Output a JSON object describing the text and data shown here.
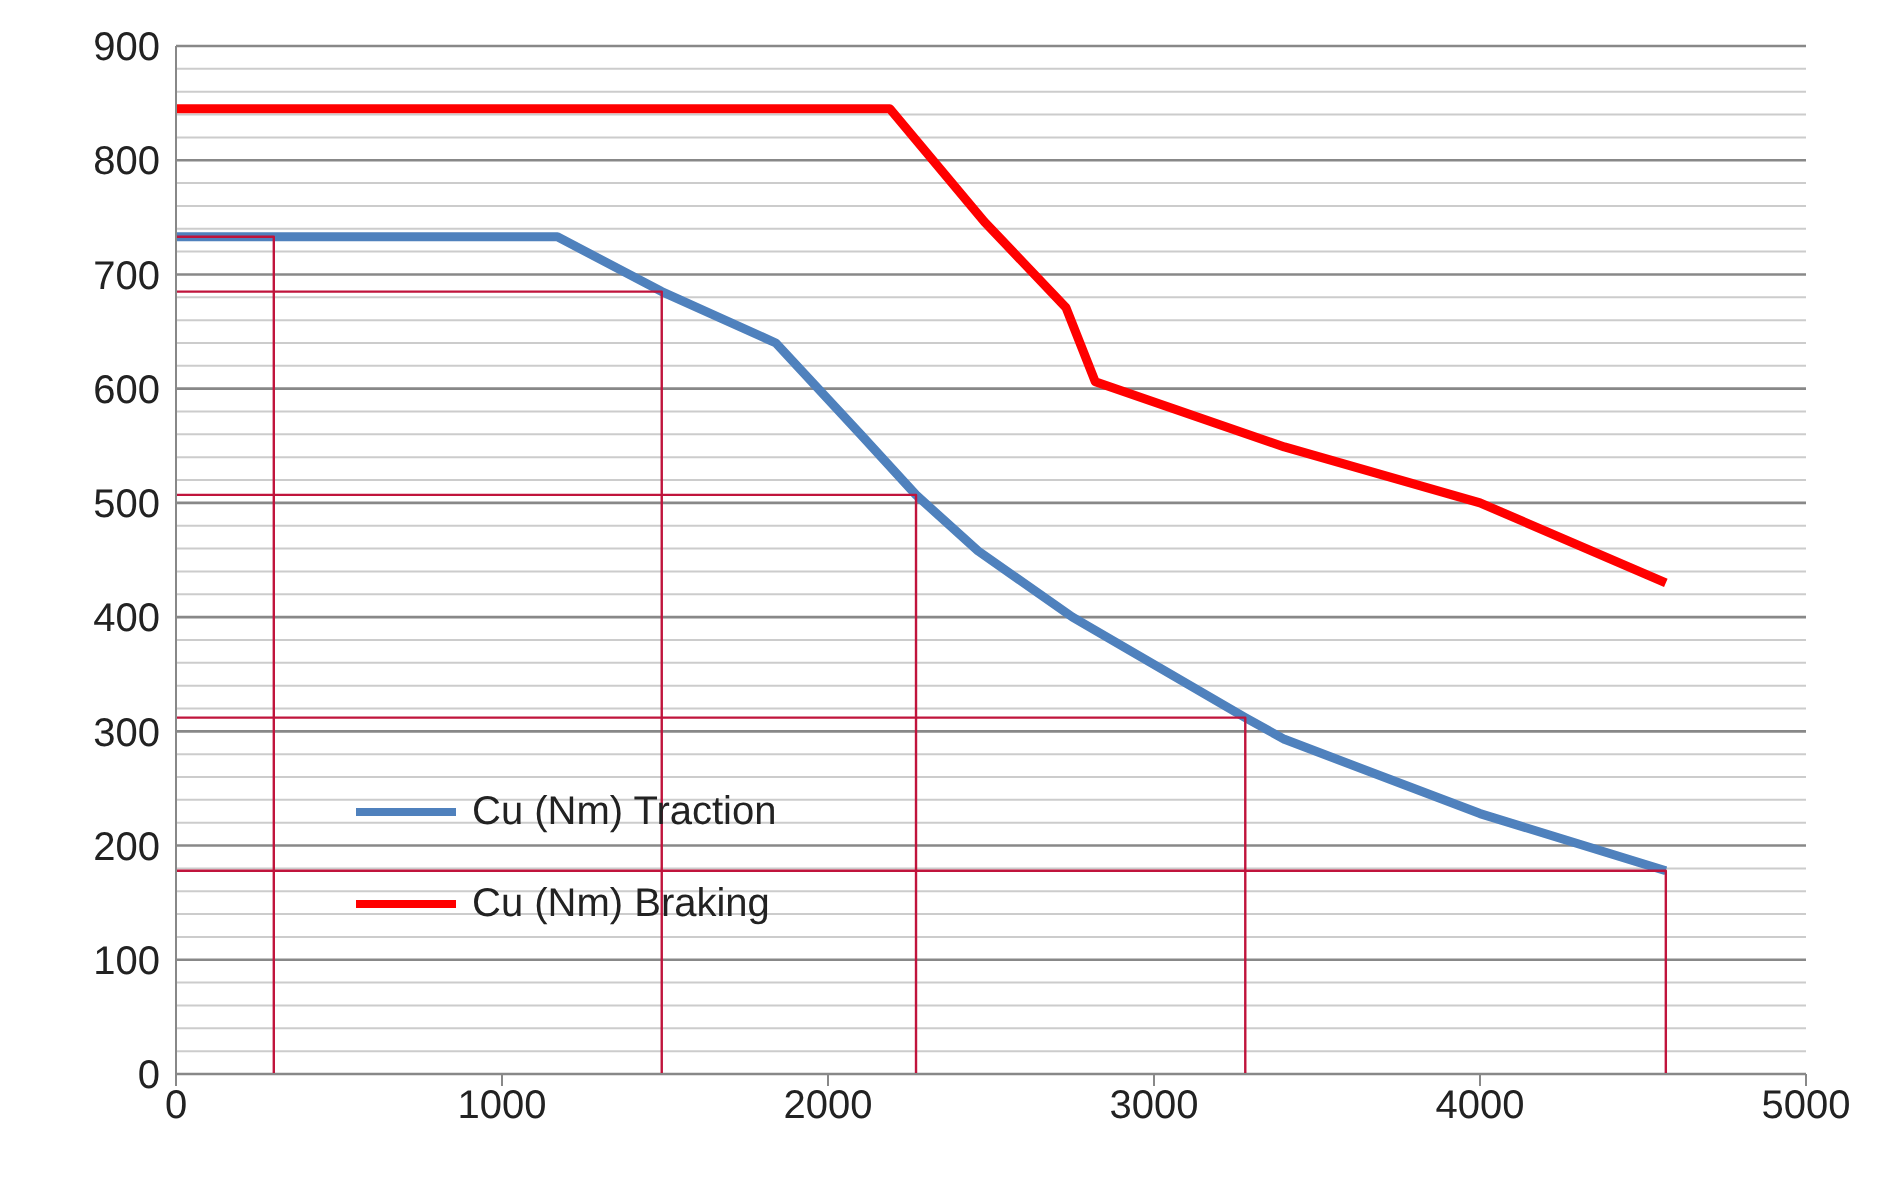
{
  "chart_data": {
    "type": "line",
    "xlim": [
      0,
      5000
    ],
    "xticks": [
      0,
      1000,
      2000,
      3000,
      4000,
      5000
    ],
    "ylim": [
      0,
      900
    ],
    "yticks": [
      0,
      {
        "value": 20,
        "label": null
      },
      {
        "value": 40,
        "label": null
      },
      {
        "value": 60,
        "label": null
      },
      {
        "value": 80,
        "label": null
      },
      100,
      {
        "value": 120,
        "label": null
      },
      {
        "value": 140,
        "label": null
      },
      {
        "value": 160,
        "label": null
      },
      {
        "value": 180,
        "label": null
      },
      200,
      {
        "value": 220,
        "label": null
      },
      {
        "value": 240,
        "label": null
      },
      {
        "value": 260,
        "label": null
      },
      {
        "value": 280,
        "label": null
      },
      300,
      {
        "value": 320,
        "label": null
      },
      {
        "value": 340,
        "label": null
      },
      {
        "value": 360,
        "label": null
      },
      {
        "value": 380,
        "label": null
      },
      400,
      {
        "value": 420,
        "label": null
      },
      {
        "value": 440,
        "label": null
      },
      {
        "value": 460,
        "label": null
      },
      {
        "value": 480,
        "label": null
      },
      500,
      {
        "value": 520,
        "label": null
      },
      {
        "value": 540,
        "label": null
      },
      {
        "value": 560,
        "label": null
      },
      {
        "value": 580,
        "label": null
      },
      600,
      {
        "value": 620,
        "label": null
      },
      {
        "value": 640,
        "label": null
      },
      {
        "value": 660,
        "label": null
      },
      {
        "value": 680,
        "label": null
      },
      700,
      {
        "value": 720,
        "label": null
      },
      {
        "value": 740,
        "label": null
      },
      {
        "value": 760,
        "label": null
      },
      {
        "value": 780,
        "label": null
      },
      800,
      {
        "value": 820,
        "label": null
      },
      {
        "value": 840,
        "label": null
      },
      {
        "value": 860,
        "label": null
      },
      {
        "value": 880,
        "label": null
      },
      900
    ],
    "grid": "y",
    "legend": "bottom left",
    "marker": "none",
    "line_style": "solid",
    "series": [
      {
        "name": "Cu (Nm) Traction",
        "color": "#4f81bd",
        "x": [
          0,
          1170,
          1490,
          1840,
          2100,
          2270,
          2460,
          2750,
          3280,
          3400,
          4000,
          4570
        ],
        "values": [
          733,
          733,
          685,
          640,
          560,
          507,
          458,
          400,
          312,
          293,
          228,
          178
        ]
      },
      {
        "name": "Cu (Nm) Braking",
        "color": "#ff0000",
        "x": [
          0,
          2190,
          2480,
          2730,
          2820,
          3400,
          4000,
          4570
        ],
        "values": [
          845,
          845,
          746,
          671,
          606,
          549,
          500,
          430
        ]
      },
      {
        "color": "#c0143c",
        "x": [
          0,
          300,
          300
        ],
        "values": [
          733,
          733,
          0
        ]
      },
      {
        "color": "#c0143c",
        "x": [
          0,
          1490,
          1490
        ],
        "values": [
          685,
          685,
          0
        ]
      },
      {
        "color": "#c0143c",
        "x": [
          0,
          2270,
          2270
        ],
        "values": [
          507,
          507,
          0
        ]
      },
      {
        "color": "#c0143c",
        "x": [
          0,
          3280,
          3280
        ],
        "values": [
          312,
          312,
          0
        ]
      },
      {
        "color": "#c0143c",
        "x": [
          0,
          4570,
          4570
        ],
        "values": [
          178,
          178,
          0
        ]
      }
    ]
  }
}
